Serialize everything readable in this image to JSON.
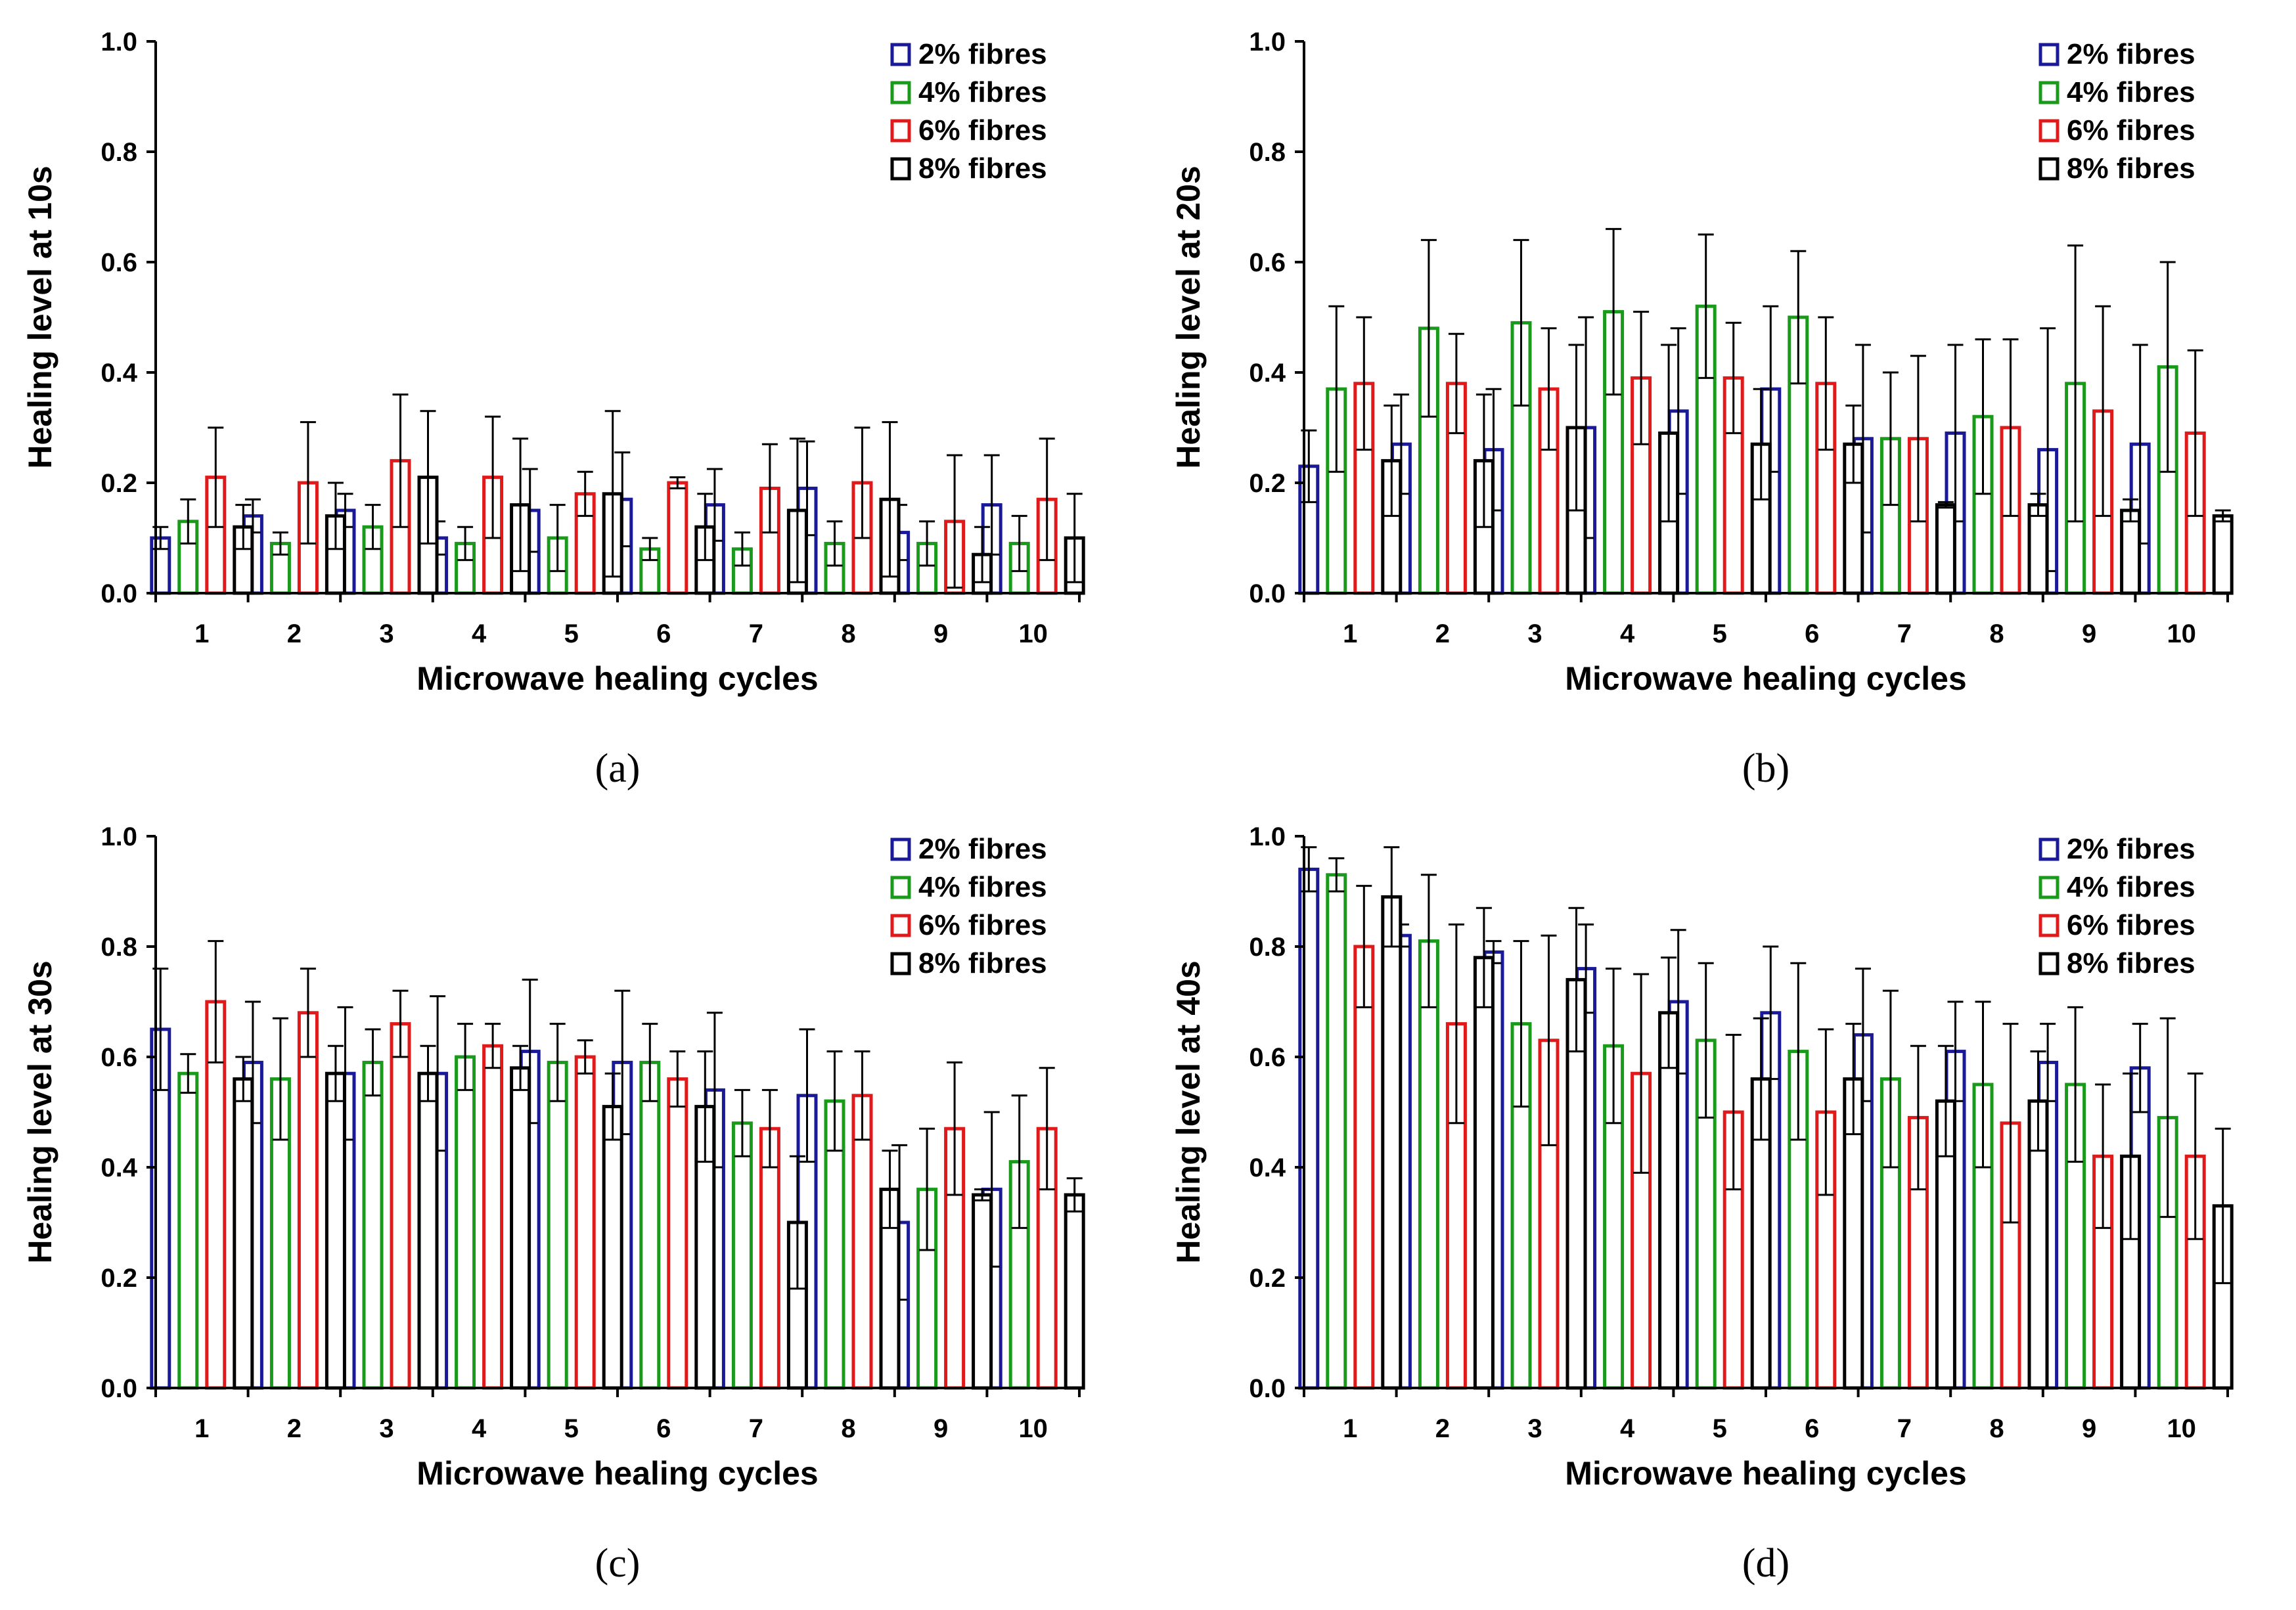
{
  "chart_data": [
    {
      "panel": "(a)",
      "type": "bar",
      "xlabel": "Microwave healing cycles",
      "ylabel": "Healing level at 10s",
      "ylim": [
        0,
        1.0
      ],
      "yticks": [
        "0.0",
        "0.2",
        "0.4",
        "0.6",
        "0.8",
        "1.0"
      ],
      "categories": [
        "1",
        "2",
        "3",
        "4",
        "5",
        "6",
        "7",
        "8",
        "9",
        "10"
      ],
      "legend_position": "top-right",
      "series": [
        {
          "name": "2% fibres",
          "color": "#1a1a99",
          "values": [
            0.1,
            0.14,
            0.15,
            0.1,
            0.15,
            0.17,
            0.16,
            0.19,
            0.11,
            0.16
          ],
          "errors": [
            0.02,
            0.03,
            0.03,
            0.03,
            0.075,
            0.085,
            0.065,
            0.085,
            0.05,
            0.09
          ]
        },
        {
          "name": "4% fibres",
          "color": "#1a9a1a",
          "values": [
            0.13,
            0.09,
            0.12,
            0.09,
            0.1,
            0.08,
            0.08,
            0.09,
            0.09,
            0.09
          ],
          "errors": [
            0.04,
            0.02,
            0.04,
            0.03,
            0.06,
            0.02,
            0.03,
            0.04,
            0.04,
            0.05
          ]
        },
        {
          "name": "6% fibres",
          "color": "#e01a1a",
          "values": [
            0.21,
            0.2,
            0.24,
            0.21,
            0.18,
            0.2,
            0.19,
            0.2,
            0.13,
            0.17
          ],
          "errors": [
            0.09,
            0.11,
            0.12,
            0.11,
            0.04,
            0.01,
            0.08,
            0.1,
            0.12,
            0.11
          ]
        },
        {
          "name": "8% fibres",
          "color": "#000000",
          "values": [
            0.12,
            0.14,
            0.21,
            0.16,
            0.18,
            0.12,
            0.15,
            0.17,
            0.07,
            0.1
          ],
          "errors": [
            0.04,
            0.06,
            0.12,
            0.12,
            0.15,
            0.06,
            0.13,
            0.14,
            0.05,
            0.08
          ]
        }
      ]
    },
    {
      "panel": "(b)",
      "type": "bar",
      "xlabel": "Microwave healing cycles",
      "ylabel": "Healing level at 20s",
      "ylim": [
        0,
        1.0
      ],
      "yticks": [
        "0.0",
        "0.2",
        "0.4",
        "0.6",
        "0.8",
        "1.0"
      ],
      "categories": [
        "1",
        "2",
        "3",
        "4",
        "5",
        "6",
        "7",
        "8",
        "9",
        "10"
      ],
      "legend_position": "top-right",
      "series": [
        {
          "name": "2% fibres",
          "color": "#1a1a99",
          "values": [
            0.23,
            0.27,
            0.26,
            0.3,
            0.33,
            0.37,
            0.28,
            0.29,
            0.26,
            0.27
          ],
          "errors": [
            0.065,
            0.09,
            0.11,
            0.2,
            0.15,
            0.15,
            0.17,
            0.16,
            0.22,
            0.18
          ]
        },
        {
          "name": "4% fibres",
          "color": "#1a9a1a",
          "values": [
            0.37,
            0.48,
            0.49,
            0.51,
            0.52,
            0.5,
            0.28,
            0.32,
            0.38,
            0.41
          ],
          "errors": [
            0.15,
            0.16,
            0.15,
            0.15,
            0.13,
            0.12,
            0.12,
            0.14,
            0.25,
            0.19
          ]
        },
        {
          "name": "6% fibres",
          "color": "#e01a1a",
          "values": [
            0.38,
            0.38,
            0.37,
            0.39,
            0.39,
            0.38,
            0.28,
            0.3,
            0.33,
            0.29
          ],
          "errors": [
            0.12,
            0.09,
            0.11,
            0.12,
            0.1,
            0.12,
            0.15,
            0.16,
            0.19,
            0.15
          ]
        },
        {
          "name": "8% fibres",
          "color": "#000000",
          "values": [
            0.24,
            0.24,
            0.3,
            0.29,
            0.27,
            0.27,
            0.16,
            0.16,
            0.15,
            0.14
          ],
          "errors": [
            0.1,
            0.12,
            0.15,
            0.16,
            0.1,
            0.07,
            0.005,
            0.02,
            0.02,
            0.01
          ]
        }
      ]
    },
    {
      "panel": "(c)",
      "type": "bar",
      "xlabel": "Microwave healing cycles",
      "ylabel": "Healing level at 30s",
      "ylim": [
        0,
        1.0
      ],
      "yticks": [
        "0.0",
        "0.2",
        "0.4",
        "0.6",
        "0.8",
        "1.0"
      ],
      "categories": [
        "1",
        "2",
        "3",
        "4",
        "5",
        "6",
        "7",
        "8",
        "9",
        "10"
      ],
      "legend_position": "top-right",
      "series": [
        {
          "name": "2% fibres",
          "color": "#1a1a99",
          "values": [
            0.65,
            0.59,
            0.57,
            0.57,
            0.61,
            0.59,
            0.54,
            0.53,
            0.3,
            0.36
          ],
          "errors": [
            0.11,
            0.11,
            0.12,
            0.14,
            0.13,
            0.13,
            0.14,
            0.12,
            0.14,
            0.14
          ]
        },
        {
          "name": "4% fibres",
          "color": "#1a9a1a",
          "values": [
            0.57,
            0.56,
            0.59,
            0.6,
            0.59,
            0.59,
            0.48,
            0.52,
            0.36,
            0.41
          ],
          "errors": [
            0.035,
            0.11,
            0.06,
            0.06,
            0.07,
            0.07,
            0.06,
            0.09,
            0.11,
            0.12
          ]
        },
        {
          "name": "6% fibres",
          "color": "#e01a1a",
          "values": [
            0.7,
            0.68,
            0.66,
            0.62,
            0.6,
            0.56,
            0.47,
            0.53,
            0.47,
            0.47
          ],
          "errors": [
            0.11,
            0.08,
            0.06,
            0.04,
            0.03,
            0.05,
            0.07,
            0.08,
            0.12,
            0.11
          ]
        },
        {
          "name": "8% fibres",
          "color": "#000000",
          "values": [
            0.56,
            0.57,
            0.57,
            0.58,
            0.51,
            0.51,
            0.3,
            0.36,
            0.35,
            0.35
          ],
          "errors": [
            0.04,
            0.05,
            0.05,
            0.04,
            0.06,
            0.1,
            0.12,
            0.07,
            0.01,
            0.03
          ]
        }
      ]
    },
    {
      "panel": "(d)",
      "type": "bar",
      "xlabel": "Microwave healing cycles",
      "ylabel": "Healing level at 40s",
      "ylim": [
        0,
        1.0
      ],
      "yticks": [
        "0.0",
        "0.2",
        "0.4",
        "0.6",
        "0.8",
        "1.0"
      ],
      "categories": [
        "1",
        "2",
        "3",
        "4",
        "5",
        "6",
        "7",
        "8",
        "9",
        "10"
      ],
      "legend_position": "top-right",
      "series": [
        {
          "name": "2% fibres",
          "color": "#1a1a99",
          "values": [
            0.94,
            0.82,
            0.79,
            0.76,
            0.7,
            0.68,
            0.64,
            0.61,
            0.59,
            0.58
          ],
          "errors": [
            0.04,
            0.02,
            0.02,
            0.08,
            0.13,
            0.12,
            0.12,
            0.09,
            0.07,
            0.08
          ]
        },
        {
          "name": "4% fibres",
          "color": "#1a9a1a",
          "values": [
            0.93,
            0.81,
            0.66,
            0.62,
            0.63,
            0.61,
            0.56,
            0.55,
            0.55,
            0.49
          ],
          "errors": [
            0.03,
            0.12,
            0.15,
            0.14,
            0.14,
            0.16,
            0.16,
            0.15,
            0.14,
            0.18
          ]
        },
        {
          "name": "6% fibres",
          "color": "#e01a1a",
          "values": [
            0.8,
            0.66,
            0.63,
            0.57,
            0.5,
            0.5,
            0.49,
            0.48,
            0.42,
            0.42
          ],
          "errors": [
            0.11,
            0.18,
            0.19,
            0.18,
            0.14,
            0.15,
            0.13,
            0.18,
            0.13,
            0.15
          ]
        },
        {
          "name": "8% fibres",
          "color": "#000000",
          "values": [
            0.89,
            0.78,
            0.74,
            0.68,
            0.56,
            0.56,
            0.52,
            0.52,
            0.42,
            0.33
          ],
          "errors": [
            0.09,
            0.09,
            0.13,
            0.1,
            0.11,
            0.1,
            0.1,
            0.09,
            0.15,
            0.14
          ]
        }
      ]
    }
  ]
}
